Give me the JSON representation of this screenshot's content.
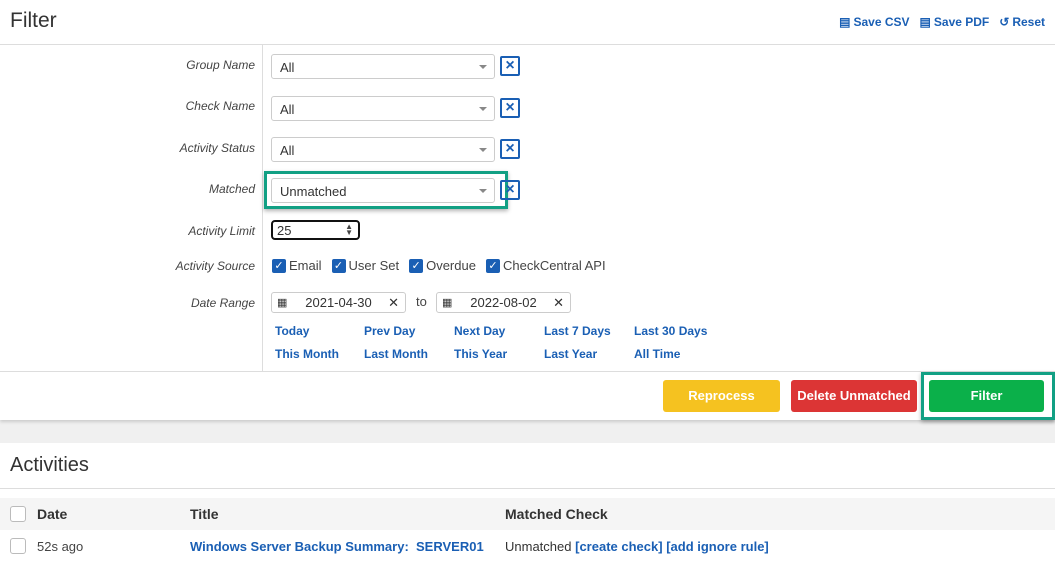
{
  "filter": {
    "title": "Filter",
    "actions": [
      {
        "icon": "csv-file-icon",
        "label": "Save CSV"
      },
      {
        "icon": "pdf-file-icon",
        "label": "Save PDF"
      },
      {
        "icon": "undo-icon",
        "label": "Reset"
      }
    ],
    "fields": {
      "group_name": {
        "label": "Group Name",
        "value": "All"
      },
      "check_name": {
        "label": "Check Name",
        "value": "All"
      },
      "activity_status": {
        "label": "Activity Status",
        "value": "All"
      },
      "matched": {
        "label": "Matched",
        "value": "Unmatched"
      },
      "activity_limit": {
        "label": "Activity Limit",
        "value": "25"
      },
      "activity_source": {
        "label": "Activity Source",
        "options": [
          {
            "label": "Email",
            "checked": true
          },
          {
            "label": "User Set",
            "checked": true
          },
          {
            "label": "Overdue",
            "checked": true
          },
          {
            "label": "CheckCentral API",
            "checked": true
          }
        ]
      },
      "date_range": {
        "label": "Date Range",
        "from": "2021-04-30",
        "to_label": "to",
        "to": "2022-08-02"
      }
    },
    "quick_ranges": [
      "Today",
      "Prev Day",
      "Next Day",
      "Last 7 Days",
      "Last 30 Days",
      "This Month",
      "Last Month",
      "This Year",
      "Last Year",
      "All Time"
    ],
    "buttons": {
      "reprocess": "Reprocess",
      "delete_unmatched": "Delete Unmatched",
      "filter": "Filter"
    },
    "colors": {
      "reprocess": "#f5c220",
      "delete": "#dc3535",
      "filter": "#0bb04a",
      "highlight": "#12a084",
      "link": "#1a5fb4"
    }
  },
  "activities": {
    "title": "Activities",
    "columns": [
      "Date",
      "Title",
      "Matched Check"
    ],
    "rows": [
      {
        "date": "52s ago",
        "title": "Windows Server Backup Summary:  SERVER01",
        "matched_status": "Unmatched",
        "actions": [
          "[create check]",
          "[add ignore rule]"
        ]
      }
    ]
  }
}
